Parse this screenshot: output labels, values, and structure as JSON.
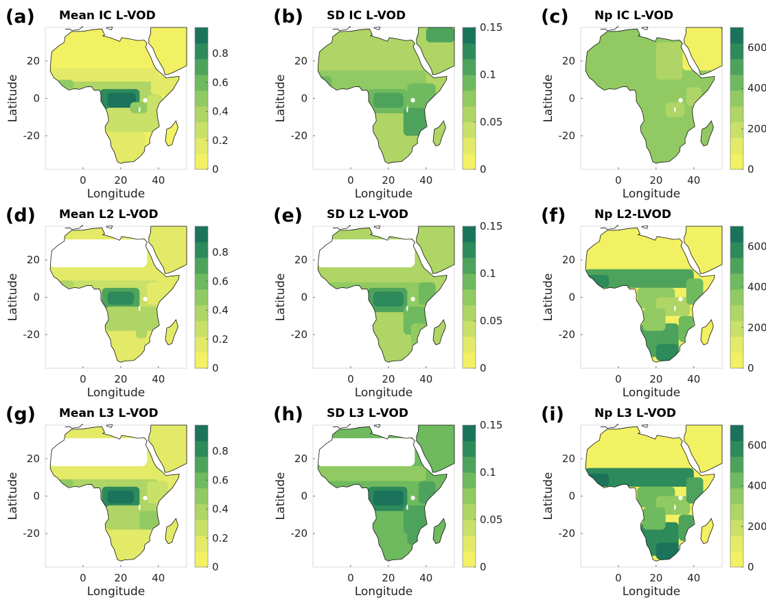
{
  "figure": {
    "xlabel": "Longitude",
    "ylabel": "Latitude",
    "x_ticks": [
      "0",
      "20",
      "40"
    ],
    "y_ticks": [
      "20",
      "0",
      "-20"
    ],
    "colormap": [
      "#f2f063",
      "#e3ea67",
      "#c9e069",
      "#aed565",
      "#91ca62",
      "#6fb95f",
      "#4ea35c",
      "#2d8a5b",
      "#1a735a"
    ]
  },
  "panels": [
    {
      "letter": "(a)",
      "title": "Mean IC L-VOD",
      "colorbar": [
        "0.8",
        "0.6",
        "0.4",
        "0.2",
        "0"
      ],
      "pattern": "mean_ic",
      "sahara_blank": false
    },
    {
      "letter": "(b)",
      "title": "SD IC L-VOD",
      "colorbar": [
        "0.15",
        "0.1",
        "0.05",
        "0"
      ],
      "pattern": "sd_ic",
      "sahara_blank": false
    },
    {
      "letter": "(c)",
      "title": "Np IC L-VOD",
      "colorbar": [
        "600",
        "400",
        "200",
        "0"
      ],
      "pattern": "np_ic",
      "sahara_blank": false
    },
    {
      "letter": "(d)",
      "title": "Mean L2 L-VOD",
      "colorbar": [
        "0.8",
        "0.6",
        "0.4",
        "0.2",
        "0"
      ],
      "pattern": "mean_l2",
      "sahara_blank": true
    },
    {
      "letter": "(e)",
      "title": "SD L2 L-VOD",
      "colorbar": [
        "0.15",
        "0.1",
        "0.05",
        "0"
      ],
      "pattern": "sd_l2",
      "sahara_blank": true
    },
    {
      "letter": "(f)",
      "title": "Np L2-LVOD",
      "colorbar": [
        "600",
        "400",
        "200",
        "0"
      ],
      "pattern": "np_l2",
      "sahara_blank": false
    },
    {
      "letter": "(g)",
      "title": "Mean L3 L-VOD",
      "colorbar": [
        "0.8",
        "0.6",
        "0.4",
        "0.2",
        "0"
      ],
      "pattern": "mean_l3",
      "sahara_blank": true
    },
    {
      "letter": "(h)",
      "title": "SD L3 L-VOD",
      "colorbar": [
        "0.15",
        "0.1",
        "0.05",
        "0"
      ],
      "pattern": "sd_l3",
      "sahara_blank": true
    },
    {
      "letter": "(i)",
      "title": "Np L3 L-VOD",
      "colorbar": [
        "600",
        "400",
        "200",
        "0"
      ],
      "pattern": "np_l3",
      "sahara_blank": false
    }
  ]
}
